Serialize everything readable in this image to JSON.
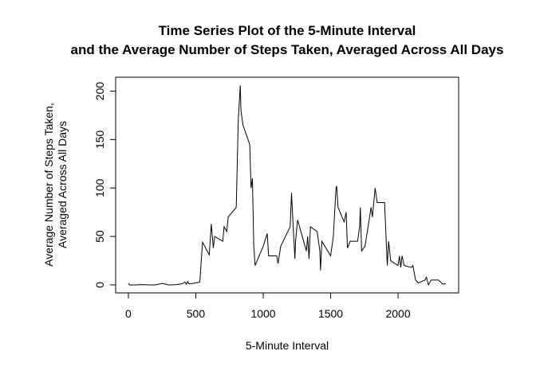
{
  "chart_data": {
    "type": "line",
    "title": [
      "Time Series Plot of the 5-Minute Interval",
      "and the Average Number of Steps Taken, Averaged Across All Days"
    ],
    "xlabel": "5-Minute Interval",
    "ylabel": [
      "Average Number of Steps Taken,",
      "Averaged Across All Days"
    ],
    "x": [
      0,
      10,
      50,
      100,
      150,
      200,
      250,
      300,
      350,
      400,
      420,
      430,
      440,
      450,
      500,
      530,
      550,
      600,
      615,
      630,
      640,
      700,
      710,
      730,
      740,
      800,
      815,
      830,
      835,
      850,
      900,
      910,
      920,
      930,
      940,
      1000,
      1030,
      1040,
      1100,
      1110,
      1130,
      1200,
      1210,
      1215,
      1235,
      1240,
      1255,
      1300,
      1320,
      1330,
      1340,
      1350,
      1400,
      1420,
      1425,
      1435,
      1500,
      1520,
      1540,
      1545,
      1555,
      1600,
      1615,
      1625,
      1645,
      1700,
      1715,
      1720,
      1730,
      1755,
      1800,
      1810,
      1830,
      1845,
      1900,
      1920,
      1930,
      1945,
      2000,
      2010,
      2020,
      2030,
      2045,
      2100,
      2110,
      2130,
      2150,
      2200,
      2210,
      2225,
      2245,
      2300,
      2315,
      2330,
      2355
    ],
    "series": [
      {
        "name": "steps",
        "color": "#000000",
        "values": [
          1.7,
          0,
          0,
          0.3,
          0,
          0,
          1.5,
          0,
          0.2,
          1.2,
          3,
          0.6,
          3.5,
          1,
          2,
          3,
          44,
          31,
          63,
          38,
          50,
          45,
          60,
          55,
          70,
          80,
          170,
          206,
          180,
          165,
          145,
          100,
          110,
          40,
          20,
          40,
          53,
          30,
          30,
          22,
          40,
          60,
          95,
          80,
          27,
          45,
          67,
          45,
          35,
          50,
          27,
          60,
          55,
          35,
          15,
          45,
          30,
          50,
          100,
          102,
          80,
          65,
          75,
          38,
          45,
          45,
          60,
          80,
          35,
          40,
          80,
          70,
          100,
          85,
          85,
          20,
          45,
          25,
          20,
          30,
          18,
          30,
          20,
          18,
          20,
          5,
          2,
          5,
          8,
          0,
          5,
          5,
          3,
          1,
          1
        ]
      }
    ],
    "xlim": [
      -94.2,
      2449.2
    ],
    "xticks": [
      0,
      500,
      1000,
      1500,
      2000
    ],
    "ylim": [
      -8.25,
      214.4
    ],
    "yticks": [
      0,
      50,
      100,
      150,
      200
    ]
  }
}
